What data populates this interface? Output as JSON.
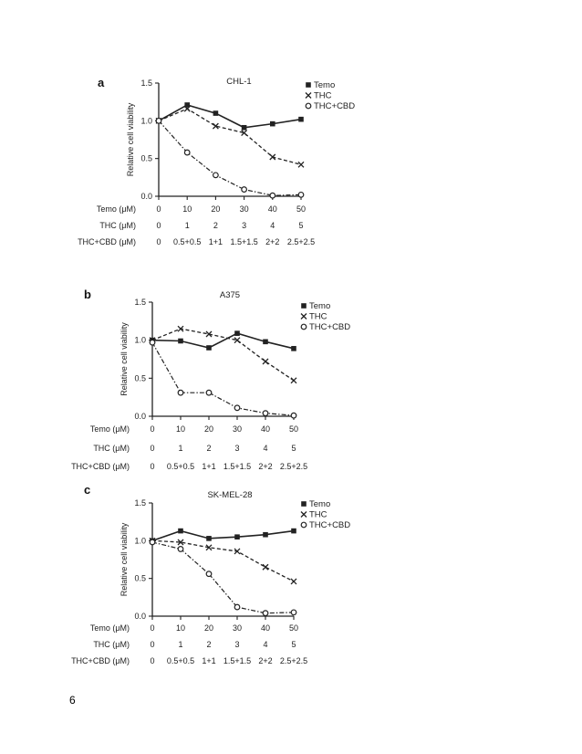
{
  "page": {
    "number": "6"
  },
  "chart_data": [
    {
      "type": "line",
      "panel_label": "a",
      "title": "CHL-1",
      "ylabel": "Relative cell viability",
      "ylim": [
        0,
        1.5
      ],
      "yticks": [
        "0.0",
        "0.5",
        "1.0",
        "1.5"
      ],
      "x": [
        0,
        10,
        20,
        30,
        40,
        50
      ],
      "row_labels": [
        {
          "label": "Temo (μM)",
          "values": [
            "0",
            "10",
            "20",
            "30",
            "40",
            "50"
          ]
        },
        {
          "label": "THC (μM)",
          "values": [
            "0",
            "1",
            "2",
            "3",
            "4",
            "5"
          ]
        },
        {
          "label": "THC+CBD (μM)",
          "values": [
            "0",
            "0.5+0.5",
            "1+1",
            "1.5+1.5",
            "2+2",
            "2.5+2.5"
          ]
        }
      ],
      "series": [
        {
          "name": "Temo",
          "marker": "square",
          "style": "solid",
          "values": [
            1.0,
            1.21,
            1.1,
            0.91,
            0.96,
            1.02
          ]
        },
        {
          "name": "THC",
          "marker": "x",
          "style": "dashed",
          "values": [
            1.0,
            1.16,
            0.93,
            0.84,
            0.52,
            0.42
          ]
        },
        {
          "name": "THC+CBD",
          "marker": "circle",
          "style": "dashdot",
          "values": [
            1.0,
            0.58,
            0.28,
            0.09,
            0.01,
            0.02
          ]
        }
      ]
    },
    {
      "type": "line",
      "panel_label": "b",
      "title": "A375",
      "ylabel": "Relative cell viability",
      "ylim": [
        0,
        1.5
      ],
      "yticks": [
        "0.0",
        "0.5",
        "1.0",
        "1.5"
      ],
      "x": [
        0,
        10,
        20,
        30,
        40,
        50
      ],
      "row_labels": [
        {
          "label": "Temo (μM)",
          "values": [
            "0",
            "10",
            "20",
            "30",
            "40",
            "50"
          ]
        },
        {
          "label": "THC (μM)",
          "values": [
            "0",
            "1",
            "2",
            "3",
            "4",
            "5"
          ]
        },
        {
          "label": "THC+CBD (μM)",
          "values": [
            "0",
            "0.5+0.5",
            "1+1",
            "1.5+1.5",
            "2+2",
            "2.5+2.5"
          ]
        }
      ],
      "series": [
        {
          "name": "Temo",
          "marker": "square",
          "style": "solid",
          "values": [
            1.0,
            0.99,
            0.9,
            1.09,
            0.98,
            0.89
          ]
        },
        {
          "name": "THC",
          "marker": "x",
          "style": "dashed",
          "values": [
            1.0,
            1.15,
            1.08,
            1.0,
            0.72,
            0.47
          ]
        },
        {
          "name": "THC+CBD",
          "marker": "circle",
          "style": "dashdot",
          "values": [
            0.97,
            0.31,
            0.31,
            0.11,
            0.04,
            0.01
          ]
        }
      ]
    },
    {
      "type": "line",
      "panel_label": "c",
      "title": "SK-MEL-28",
      "ylabel": "Relative cell viability",
      "ylim": [
        0,
        1.5
      ],
      "yticks": [
        "0.0",
        "0.5",
        "1.0",
        "1.5"
      ],
      "x": [
        0,
        10,
        20,
        30,
        40,
        50
      ],
      "row_labels": [
        {
          "label": "Temo (μM)",
          "values": [
            "0",
            "10",
            "20",
            "30",
            "40",
            "50"
          ]
        },
        {
          "label": "THC (μM)",
          "values": [
            "0",
            "1",
            "2",
            "3",
            "4",
            "5"
          ]
        },
        {
          "label": "THC+CBD (μM)",
          "values": [
            "0",
            "0.5+0.5",
            "1+1",
            "1.5+1.5",
            "2+2",
            "2.5+2.5"
          ]
        }
      ],
      "series": [
        {
          "name": "Temo",
          "marker": "square",
          "style": "solid",
          "values": [
            1.0,
            1.13,
            1.03,
            1.05,
            1.08,
            1.13
          ]
        },
        {
          "name": "THC",
          "marker": "x",
          "style": "dashed",
          "values": [
            1.0,
            0.98,
            0.91,
            0.86,
            0.65,
            0.46
          ]
        },
        {
          "name": "THC+CBD",
          "marker": "circle",
          "style": "dashdot",
          "values": [
            0.98,
            0.89,
            0.56,
            0.12,
            0.04,
            0.05
          ]
        }
      ]
    }
  ]
}
